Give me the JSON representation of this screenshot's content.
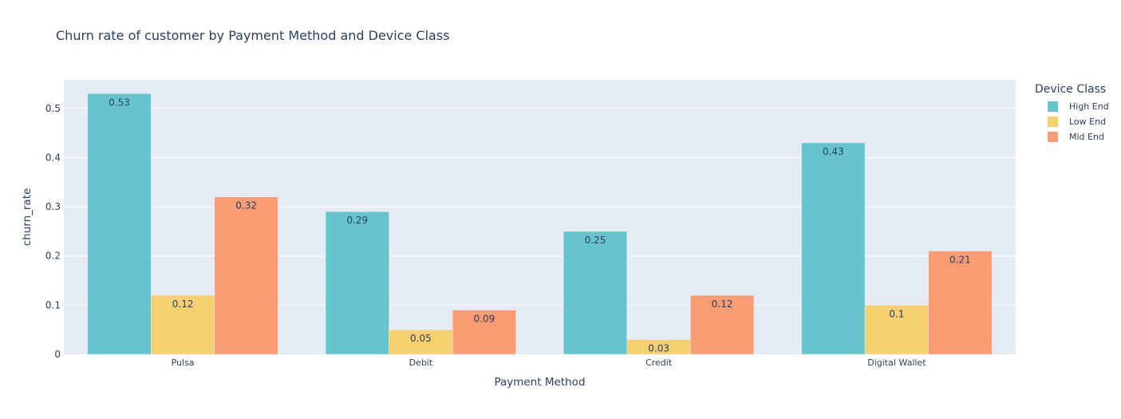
{
  "chart_data": {
    "type": "bar",
    "title": "Churn rate of customer by Payment Method and Device Class",
    "xlabel": "Payment Method",
    "ylabel": "churn_rate",
    "categories": [
      "Pulsa",
      "Debit",
      "Credit",
      "Digital Wallet"
    ],
    "series": [
      {
        "name": "High End",
        "color": "#66c5cc",
        "values": [
          0.53,
          0.29,
          0.25,
          0.43
        ],
        "labels": [
          "0.53",
          "0.29",
          "0.25",
          "0.43"
        ]
      },
      {
        "name": "Low End",
        "color": "#f6cf71",
        "values": [
          0.12,
          0.05,
          0.03,
          0.1
        ],
        "labels": [
          "0.12",
          "0.05",
          "0.03",
          "0.1"
        ]
      },
      {
        "name": "Mid End",
        "color": "#f89c74",
        "values": [
          0.32,
          0.09,
          0.12,
          0.21
        ],
        "labels": [
          "0.32",
          "0.09",
          "0.12",
          "0.21"
        ]
      }
    ],
    "ylim": [
      0,
      0.558
    ],
    "yticks": [
      0,
      0.1,
      0.2,
      0.3,
      0.4,
      0.5
    ],
    "ytick_labels": [
      "0",
      "0.1",
      "0.2",
      "0.3",
      "0.4",
      "0.5"
    ],
    "legend_title": "Device Class",
    "legend_position": "right",
    "grid": true,
    "plot_background": "#e5ecf6"
  }
}
